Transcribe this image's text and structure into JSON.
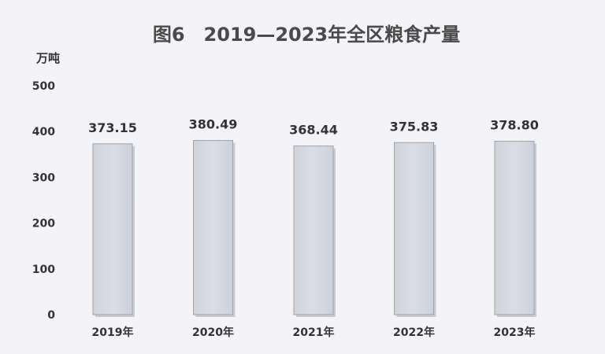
{
  "chart_data": {
    "type": "bar",
    "title": "图6　2019—2023年全区粮食产量",
    "ylabel": "万吨",
    "xlabel": "",
    "categories": [
      "2019年",
      "2020年",
      "2021年",
      "2022年",
      "2023年"
    ],
    "values": [
      373.15,
      380.49,
      368.44,
      375.83,
      378.8
    ],
    "value_labels": [
      "373.15",
      "380.49",
      "368.44",
      "375.83",
      "378.80"
    ],
    "ylim": [
      0,
      500
    ],
    "yticks": [
      0,
      100,
      200,
      300,
      400,
      500
    ],
    "ytick_labels": [
      "0",
      "100",
      "200",
      "300",
      "400",
      "500"
    ],
    "grid": false,
    "legend": "none",
    "colors": {
      "bar_fill": "#d6d9e2",
      "bar_border": "#9ea2ab",
      "bar_shadow": "#a7abb3",
      "background": "#f4f4f8",
      "text": "#333333",
      "title": "#4a4a4a"
    }
  }
}
